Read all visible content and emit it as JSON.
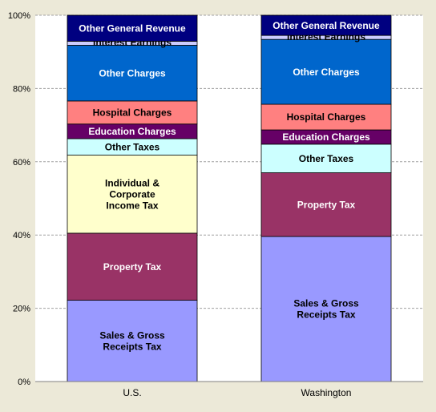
{
  "chart_data": {
    "type": "bar",
    "stacked": true,
    "normalized": true,
    "categories": [
      "U.S.",
      "Washington"
    ],
    "ylim": [
      0,
      100
    ],
    "yticks": [
      "0%",
      "20%",
      "40%",
      "60%",
      "80%",
      "100%"
    ],
    "grid": true,
    "series": [
      {
        "name": "Sales & Gross Receipts Tax",
        "label_lines": [
          "Sales & Gross",
          "Receipts Tax"
        ],
        "color": "#9999ff",
        "text_color": "#000000",
        "values": [
          22.2,
          39.6
        ]
      },
      {
        "name": "Property Tax",
        "label_lines": [
          "Property Tax"
        ],
        "color": "#993366",
        "text_color": "#ffffff",
        "values": [
          18.3,
          17.4
        ]
      },
      {
        "name": "Individual & Corporate Income Tax",
        "label_lines": [
          "Individual  &",
          "Corporate",
          "Income Tax"
        ],
        "color": "#ffffcc",
        "text_color": "#000000",
        "values": [
          21.3,
          0
        ]
      },
      {
        "name": "Other Taxes",
        "label_lines": [
          "Other Taxes"
        ],
        "color": "#ccffff",
        "text_color": "#000000",
        "values": [
          4.5,
          7.8
        ]
      },
      {
        "name": "Education Charges",
        "label_lines": [
          "Education Charges"
        ],
        "color": "#660066",
        "text_color": "#ffffff",
        "values": [
          4.0,
          3.9
        ]
      },
      {
        "name": "Hospital Charges",
        "label_lines": [
          "Hospital  Charges"
        ],
        "color": "#ff8080",
        "text_color": "#000000",
        "values": [
          6.3,
          7.0
        ]
      },
      {
        "name": "Other Charges",
        "label_lines": [
          "Other Charges"
        ],
        "color": "#0066cc",
        "text_color": "#ffffff",
        "values": [
          15.2,
          17.7
        ]
      },
      {
        "name": "Interest Earnings",
        "label_lines": [
          "Interest Earnings"
        ],
        "color": "#ccccff",
        "text_color": "#000000",
        "values": [
          1.1,
          1.1
        ]
      },
      {
        "name": "Other General Revenue",
        "label_lines": [
          "Other General Revenue"
        ],
        "color": "#000080",
        "text_color": "#ffffff",
        "values": [
          7.1,
          5.5
        ]
      }
    ]
  }
}
